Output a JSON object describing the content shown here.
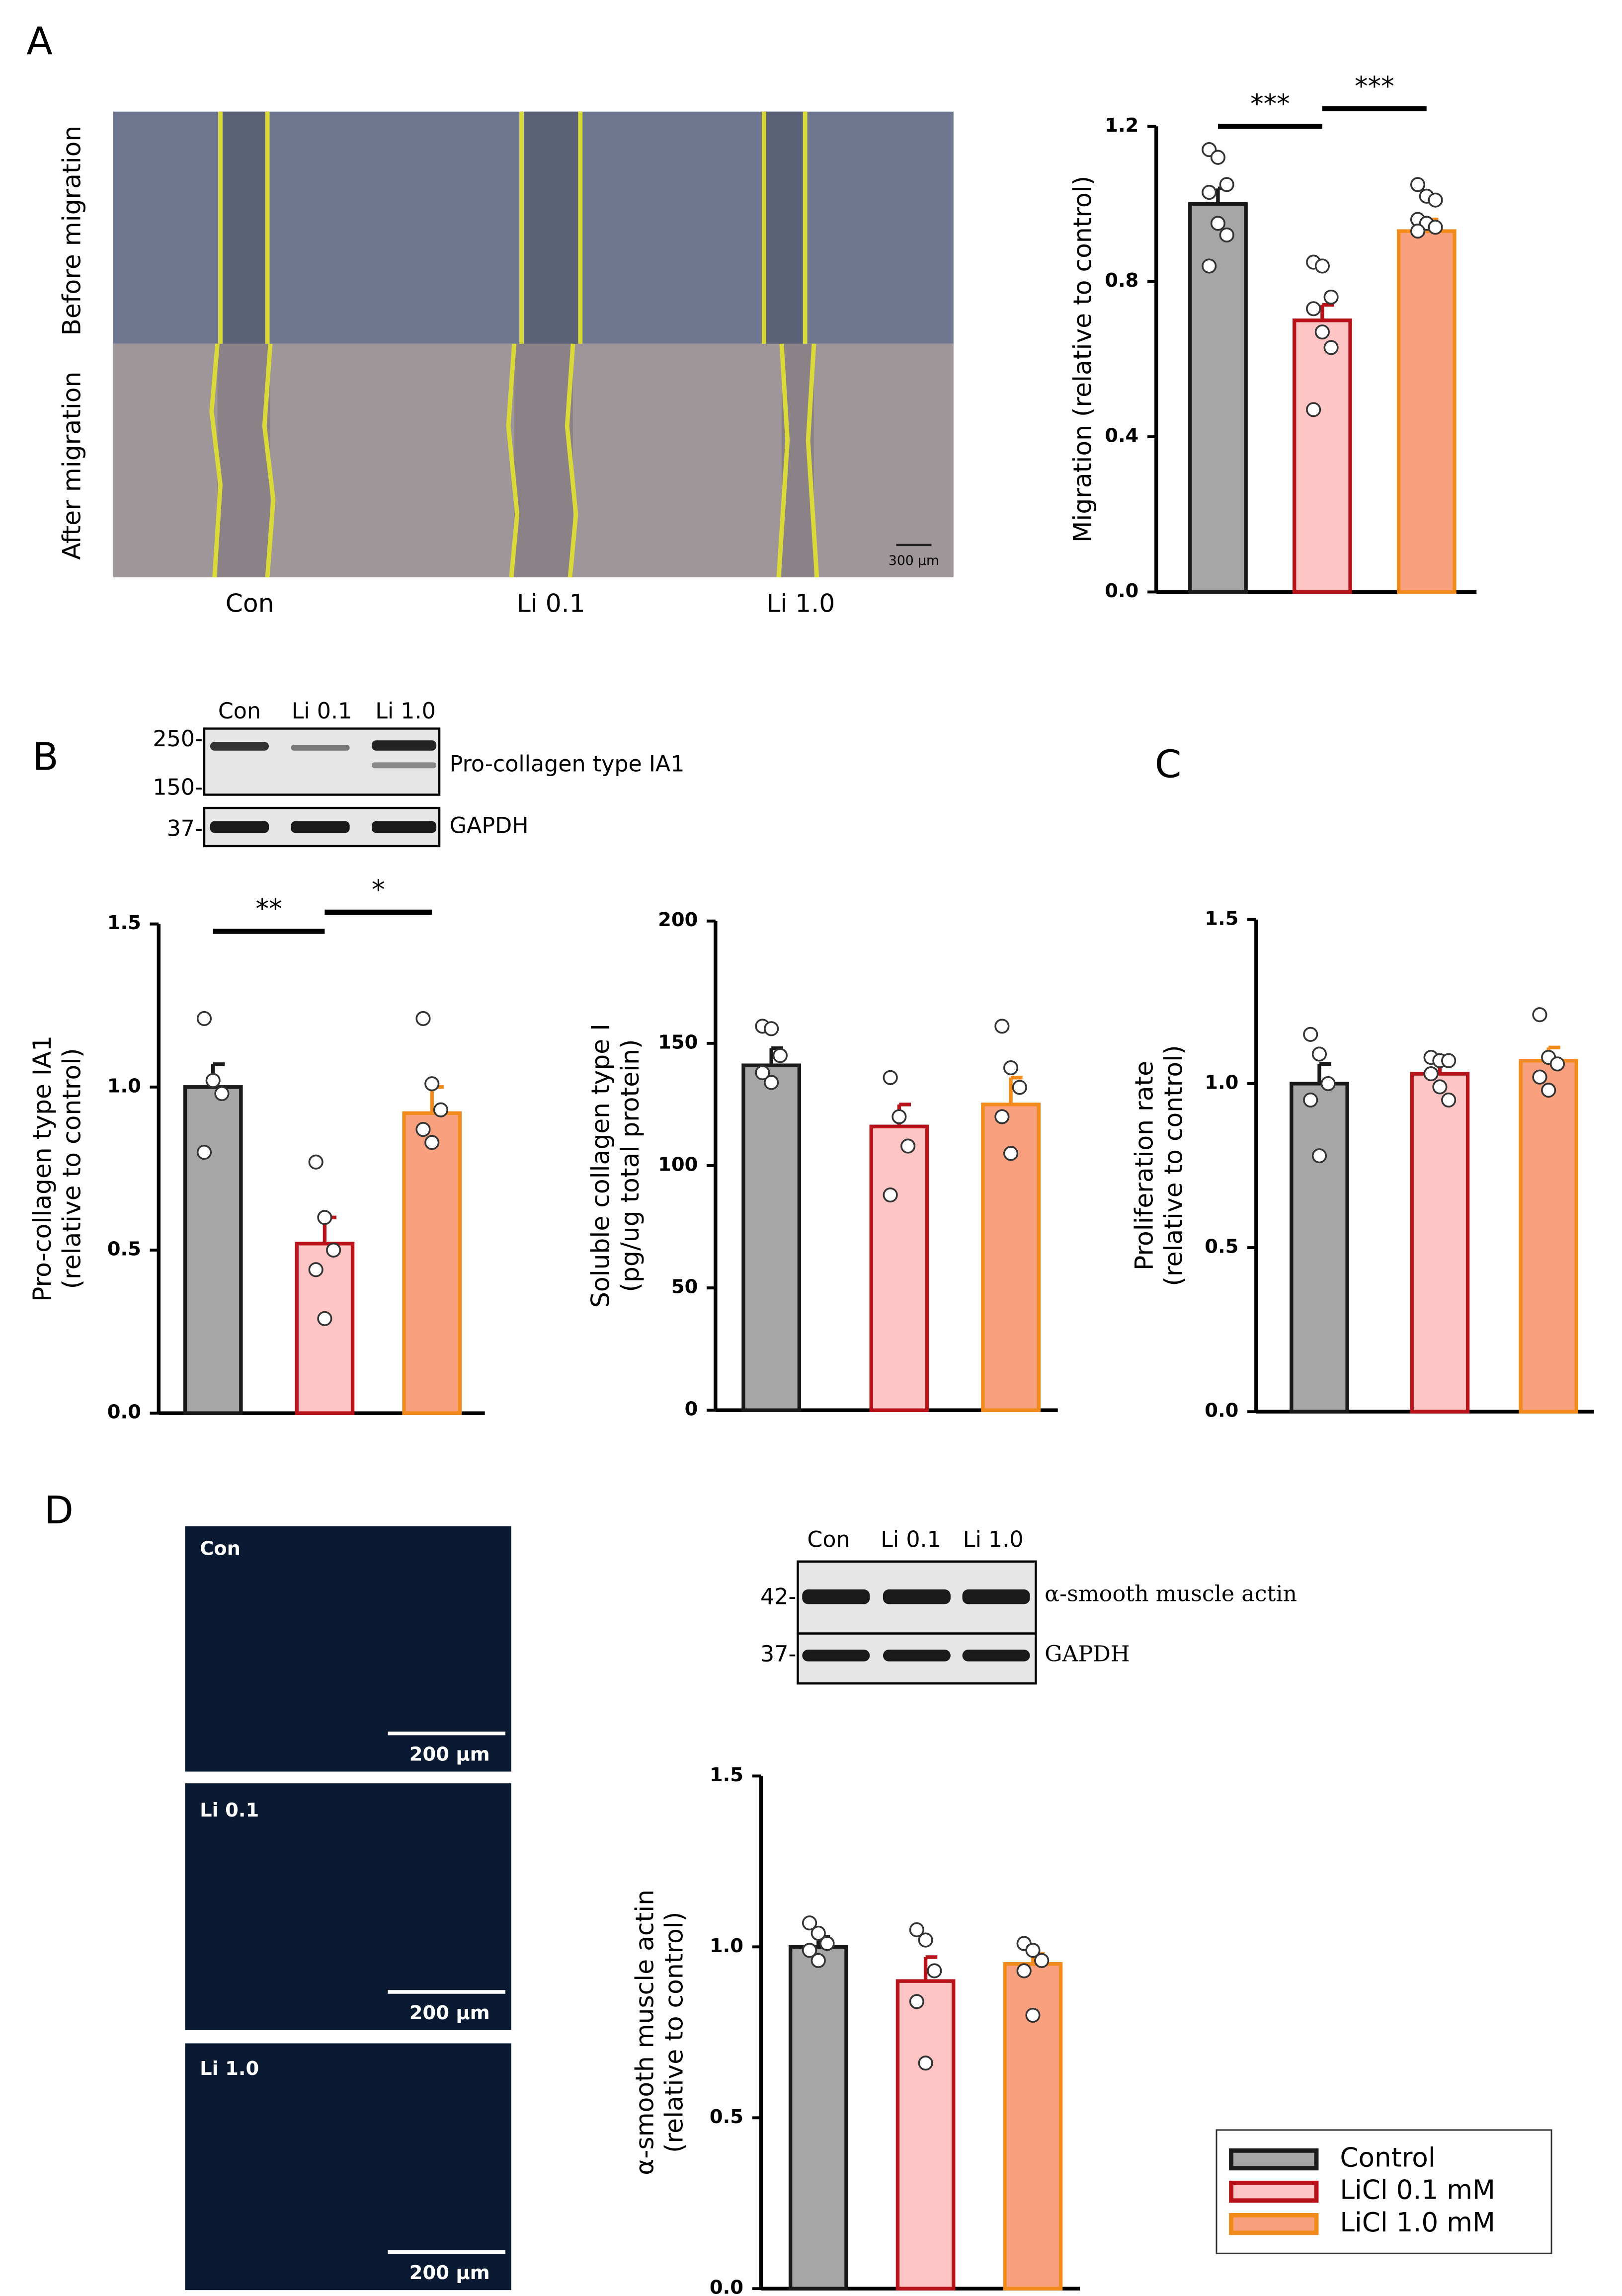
{
  "panel_labels": [
    "A",
    "B",
    "C",
    "D"
  ],
  "migration_images": {
    "row_labels": [
      "Before migration",
      "After migration"
    ],
    "column_labels": [
      "Con",
      "Li 0.1",
      "Li 1.0"
    ],
    "scale_bar": "300 µm"
  },
  "blot_b": {
    "lanes": [
      "Con",
      "Li 0.1",
      "Li 1.0"
    ],
    "markers": [
      "250-",
      "150-",
      "37-"
    ],
    "bands": [
      "Pro-collagen type IA1",
      "GAPDH"
    ]
  },
  "fluorescence": {
    "panels": [
      "Con",
      "Li 0.1",
      "Li 1.0"
    ],
    "scale_bar": "200 µm"
  },
  "blot_d": {
    "lanes": [
      "Con",
      "Li 0.1",
      "Li 1.0"
    ],
    "markers": [
      "42-",
      "37-"
    ],
    "bands": [
      "α-smooth muscle actin",
      "GAPDH"
    ]
  },
  "legend": {
    "entries": [
      {
        "name": "Control",
        "fill": "#a6a6a6",
        "edge": "#1a1a1a"
      },
      {
        "name": "LiCl 0.1 mM",
        "fill": "#ffc4c4",
        "edge": "#b8121b"
      },
      {
        "name": "LiCl 1.0 mM",
        "fill": "#f9a07e",
        "edge": "#f28a1c"
      }
    ]
  },
  "chart_data": [
    {
      "type": "bar",
      "ylabel": [
        "Migration (relative to control)"
      ],
      "categories": [
        null,
        null,
        null
      ],
      "values": [
        1.0,
        0.7,
        0.93
      ],
      "errors": [
        0.04,
        0.04,
        0.03
      ],
      "points": [
        [
          1.14,
          1.12,
          1.05,
          1.03,
          0.95,
          0.92,
          0.84
        ],
        [
          0.85,
          0.84,
          0.76,
          0.73,
          0.67,
          0.63,
          0.47
        ],
        [
          1.05,
          1.02,
          1.01,
          0.96,
          0.95,
          0.94,
          0.93
        ]
      ],
      "significance": [
        "***",
        "***"
      ],
      "ylim": [
        0,
        1.2
      ],
      "yticks": [
        {
          "value": 0,
          "label": "0.0"
        },
        0.4,
        0.8,
        1.2
      ]
    },
    {
      "type": "bar",
      "ylabel": [
        "Pro-collagen type IA1",
        "(relative to control)"
      ],
      "categories": [
        null,
        null,
        null
      ],
      "values": [
        1.0,
        0.52,
        0.92
      ],
      "errors": [
        0.07,
        0.08,
        0.08
      ],
      "points": [
        [
          1.21,
          1.02,
          0.98,
          0.8
        ],
        [
          0.77,
          0.6,
          0.5,
          0.44,
          0.29
        ],
        [
          1.21,
          1.01,
          0.93,
          0.87,
          0.83
        ]
      ],
      "significance": [
        "**",
        "*"
      ],
      "ylim": [
        0,
        1.5
      ],
      "yticks": [
        {
          "value": 0,
          "label": "0.0"
        },
        0.5,
        {
          "value": 1,
          "label": "1.0"
        },
        1.5
      ]
    },
    {
      "type": "bar",
      "ylabel": [
        "Soluble collagen type I",
        "(pg/ug total protein)"
      ],
      "categories": [
        null,
        null,
        null
      ],
      "values": [
        141,
        116,
        125
      ],
      "errors": [
        7,
        9,
        11
      ],
      "points": [
        [
          157,
          156,
          145,
          138,
          134
        ],
        [
          136,
          120,
          108,
          88
        ],
        [
          157,
          140,
          132,
          120,
          105
        ]
      ],
      "ylim": [
        0,
        200
      ],
      "yticks": [
        0,
        50,
        100,
        150,
        200
      ]
    },
    {
      "type": "bar",
      "ylabel": [
        "Proliferation rate",
        "(relative to control)"
      ],
      "categories": [
        null,
        null,
        null
      ],
      "values": [
        1.0,
        1.03,
        1.07
      ],
      "errors": [
        0.06,
        0.03,
        0.04
      ],
      "points": [
        [
          1.15,
          1.09,
          1.0,
          0.95,
          0.78
        ],
        [
          1.08,
          1.07,
          1.07,
          1.03,
          0.99,
          0.95
        ],
        [
          1.21,
          1.08,
          1.06,
          1.02,
          0.98
        ]
      ],
      "ylim": [
        0,
        1.5
      ],
      "yticks": [
        {
          "value": 0,
          "label": "0.0"
        },
        0.5,
        {
          "value": 1,
          "label": "1.0"
        },
        1.5
      ]
    },
    {
      "type": "bar",
      "ylabel": [
        "α-smooth muscle actin",
        "(relative to control)"
      ],
      "categories": [
        null,
        null,
        null
      ],
      "values": [
        1.0,
        0.9,
        0.95
      ],
      "errors": [
        0.03,
        0.07,
        0.03
      ],
      "points": [
        [
          1.07,
          1.04,
          1.01,
          0.99,
          0.96
        ],
        [
          1.05,
          1.02,
          0.93,
          0.84,
          0.66
        ],
        [
          1.01,
          0.99,
          0.96,
          0.93,
          0.8
        ]
      ],
      "ylim": [
        0,
        1.5
      ],
      "yticks": [
        {
          "value": 0,
          "label": "0.0"
        },
        0.5,
        {
          "value": 1,
          "label": "1.0"
        },
        1.5
      ]
    }
  ]
}
